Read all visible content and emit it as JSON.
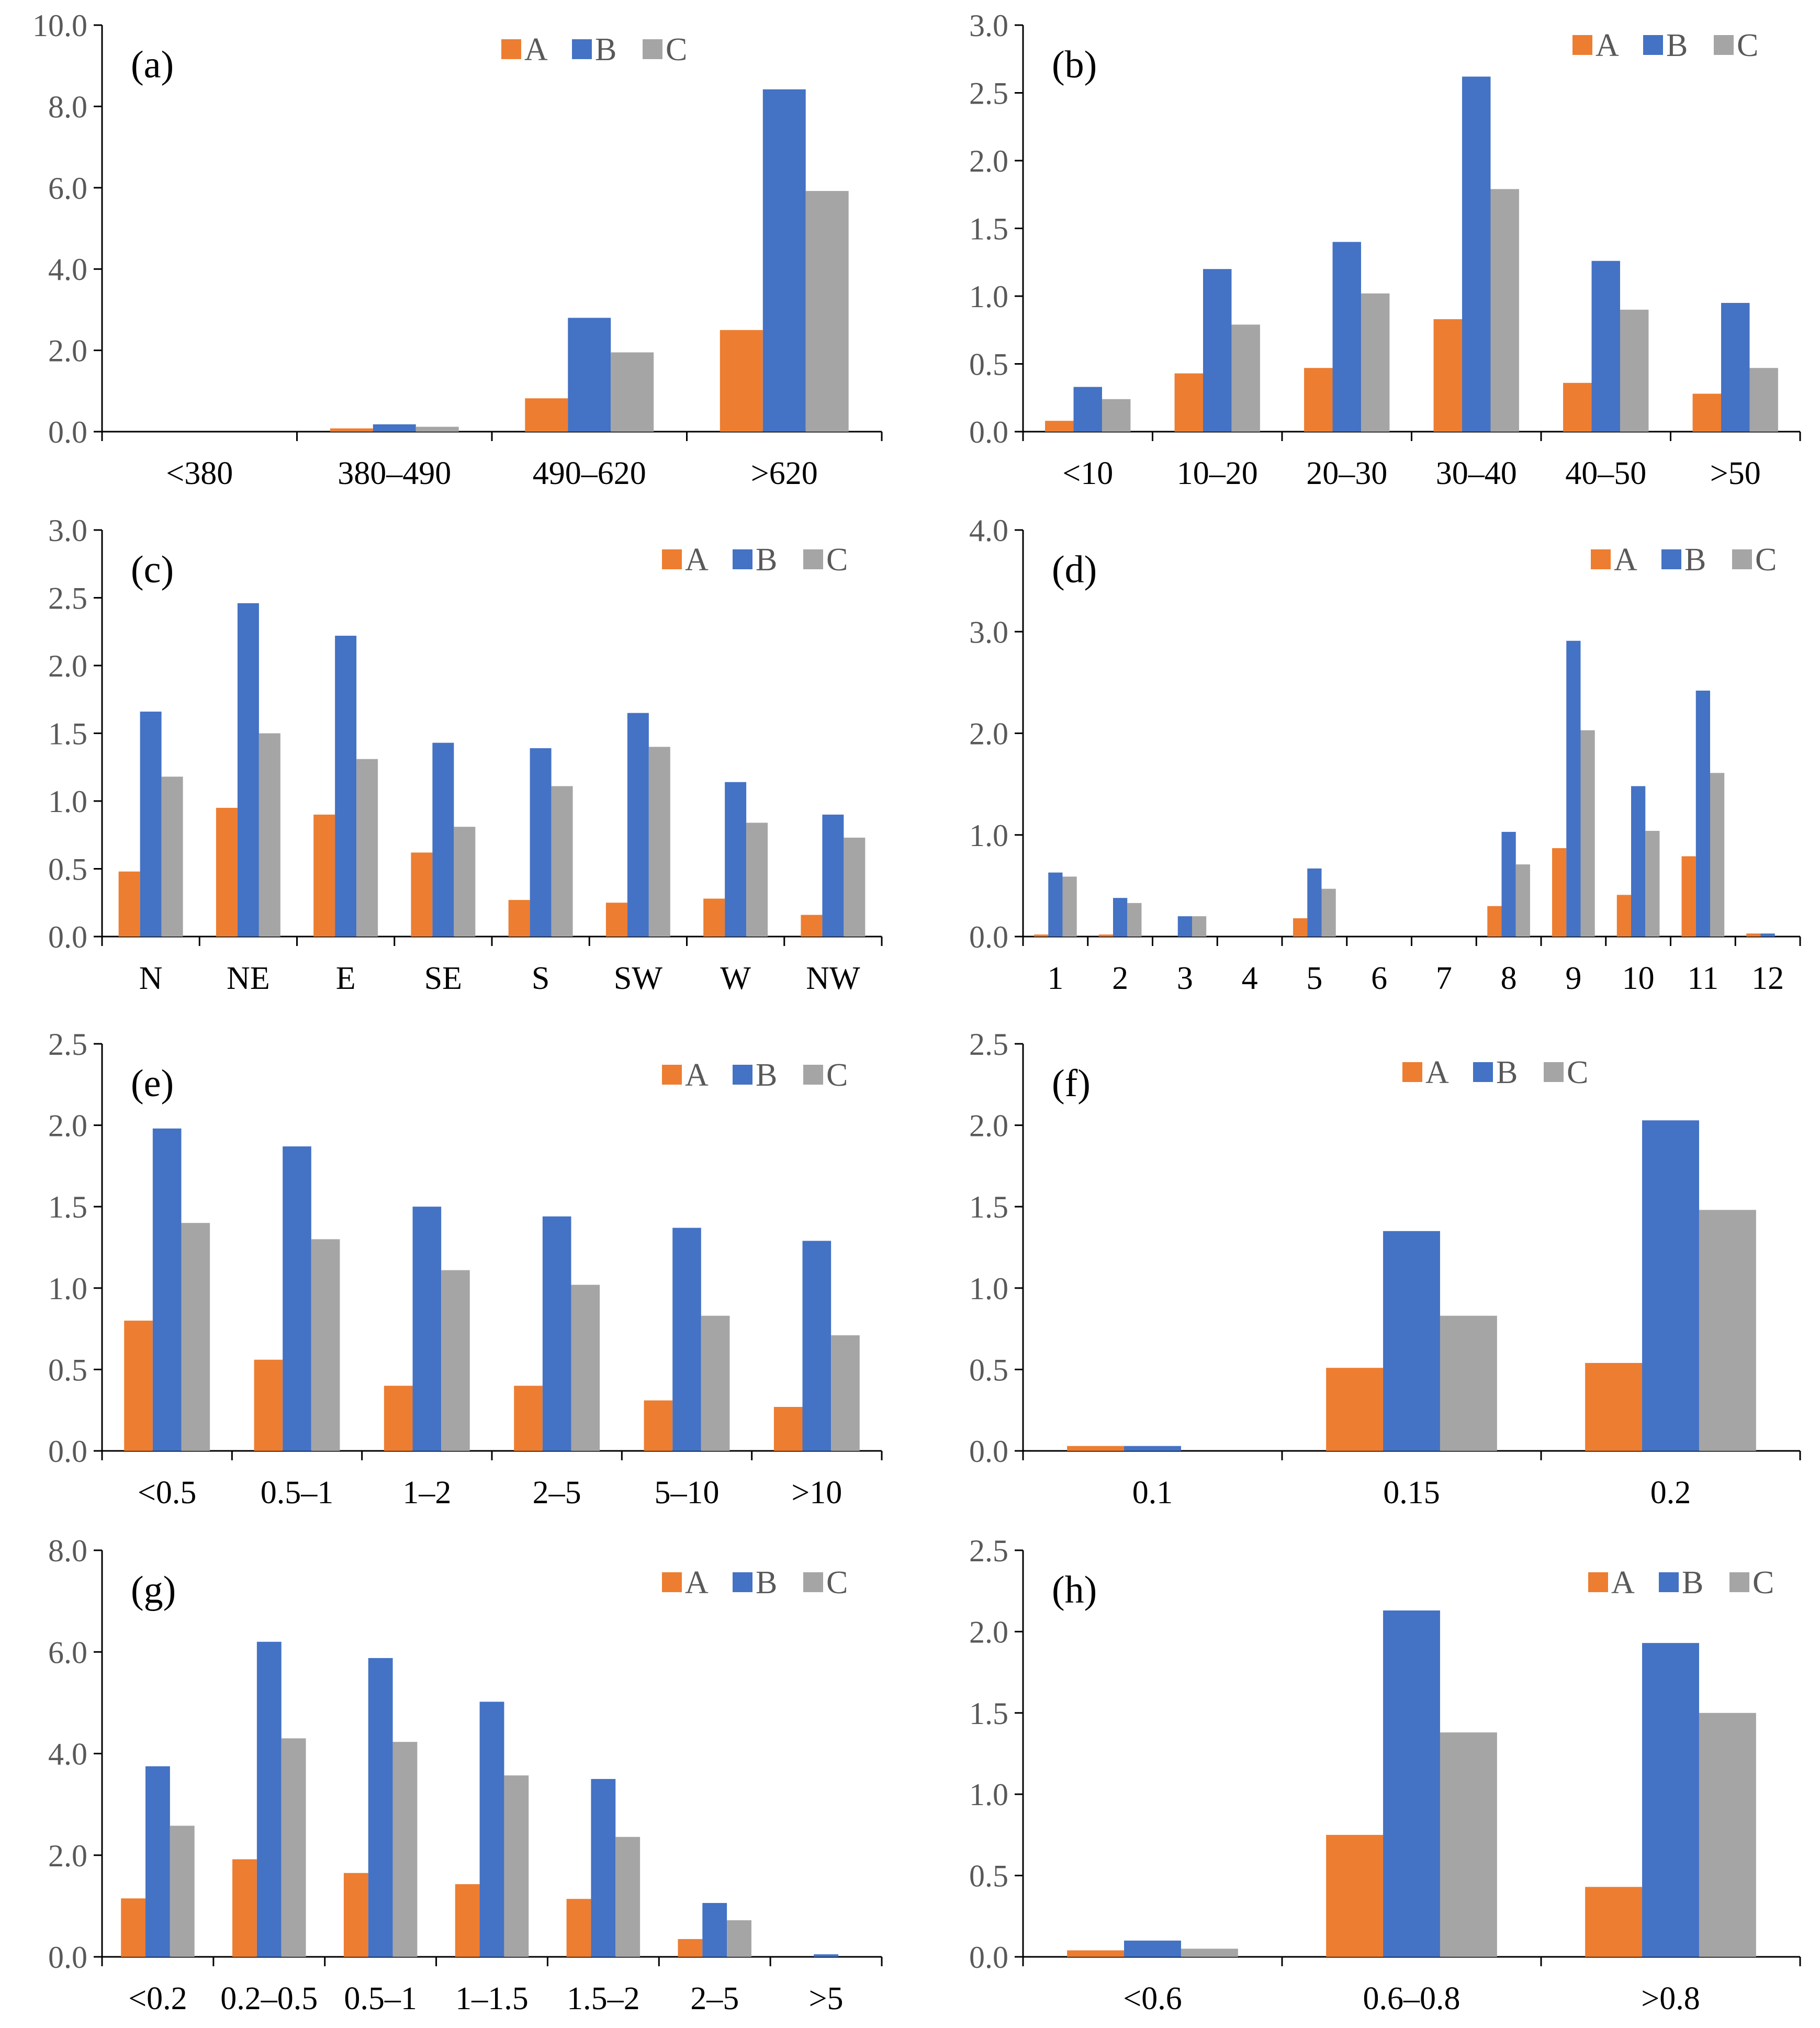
{
  "colors": {
    "A": "#ED7D31",
    "B": "#4472C4",
    "C": "#A5A5A5",
    "axis": "#000000"
  },
  "legend_labels": [
    "A",
    "B",
    "C"
  ],
  "chart_data": [
    {
      "type": "bar",
      "panel": "(a)",
      "ylim": [
        0,
        10
      ],
      "ystep": 2,
      "ydecimals": 1,
      "categories": [
        "<380",
        "380–490",
        "490–620",
        ">620"
      ],
      "series": [
        {
          "name": "A",
          "values": [
            0,
            0.08,
            0.82,
            2.5
          ]
        },
        {
          "name": "B",
          "values": [
            0,
            0.18,
            2.8,
            8.42
          ]
        },
        {
          "name": "C",
          "values": [
            0,
            0.12,
            1.95,
            5.92
          ]
        }
      ]
    },
    {
      "type": "bar",
      "panel": "(b)",
      "ylim": [
        0,
        3
      ],
      "ystep": 0.5,
      "ydecimals": 1,
      "categories": [
        "<10",
        "10–20",
        "20–30",
        "30–40",
        "40–50",
        ">50"
      ],
      "series": [
        {
          "name": "A",
          "values": [
            0.08,
            0.43,
            0.47,
            0.83,
            0.36,
            0.28
          ]
        },
        {
          "name": "B",
          "values": [
            0.33,
            1.2,
            1.4,
            2.62,
            1.26,
            0.95
          ]
        },
        {
          "name": "C",
          "values": [
            0.24,
            0.79,
            1.02,
            1.79,
            0.9,
            0.47
          ]
        }
      ]
    },
    {
      "type": "bar",
      "panel": "(c)",
      "ylim": [
        0,
        3
      ],
      "ystep": 0.5,
      "ydecimals": 1,
      "categories": [
        "N",
        "NE",
        "E",
        "SE",
        "S",
        "SW",
        "W",
        "NW"
      ],
      "series": [
        {
          "name": "A",
          "values": [
            0.48,
            0.95,
            0.9,
            0.62,
            0.27,
            0.25,
            0.28,
            0.16
          ]
        },
        {
          "name": "B",
          "values": [
            1.66,
            2.46,
            2.22,
            1.43,
            1.39,
            1.65,
            1.14,
            0.9
          ]
        },
        {
          "name": "C",
          "values": [
            1.18,
            1.5,
            1.31,
            0.81,
            1.11,
            1.4,
            0.84,
            0.73
          ]
        }
      ]
    },
    {
      "type": "bar",
      "panel": "(d)",
      "ylim": [
        0,
        4
      ],
      "ystep": 1,
      "ydecimals": 1,
      "categories": [
        "1",
        "2",
        "3",
        "4",
        "5",
        "6",
        "7",
        "8",
        "9",
        "10",
        "11",
        "12"
      ],
      "series": [
        {
          "name": "A",
          "values": [
            0.02,
            0.02,
            0,
            0,
            0.18,
            0,
            0,
            0.3,
            0.87,
            0.41,
            0.79,
            0.03
          ]
        },
        {
          "name": "B",
          "values": [
            0.63,
            0.38,
            0.2,
            0,
            0.67,
            0,
            0,
            1.03,
            2.91,
            1.48,
            2.42,
            0.03
          ]
        },
        {
          "name": "C",
          "values": [
            0.59,
            0.33,
            0.2,
            0,
            0.47,
            0,
            0,
            0.71,
            2.03,
            1.04,
            1.61,
            0
          ]
        }
      ]
    },
    {
      "type": "bar",
      "panel": "(e)",
      "ylim": [
        0,
        2.5
      ],
      "ystep": 0.5,
      "ydecimals": 1,
      "categories": [
        "<0.5",
        "0.5–1",
        "1–2",
        "2–5",
        "5–10",
        ">10"
      ],
      "series": [
        {
          "name": "A",
          "values": [
            0.8,
            0.56,
            0.4,
            0.4,
            0.31,
            0.27
          ]
        },
        {
          "name": "B",
          "values": [
            1.98,
            1.87,
            1.5,
            1.44,
            1.37,
            1.29
          ]
        },
        {
          "name": "C",
          "values": [
            1.4,
            1.3,
            1.11,
            1.02,
            0.83,
            0.71
          ]
        }
      ]
    },
    {
      "type": "bar",
      "panel": "(f)",
      "ylim": [
        0,
        2.5
      ],
      "ystep": 0.5,
      "ydecimals": 1,
      "categories": [
        "0.1",
        "0.15",
        "0.2"
      ],
      "series": [
        {
          "name": "A",
          "values": [
            0.03,
            0.51,
            0.54
          ]
        },
        {
          "name": "B",
          "values": [
            0.03,
            1.35,
            2.03
          ]
        },
        {
          "name": "C",
          "values": [
            0,
            0.83,
            1.48
          ]
        }
      ]
    },
    {
      "type": "bar",
      "panel": "(g)",
      "ylim": [
        0,
        8
      ],
      "ystep": 2,
      "ydecimals": 1,
      "categories": [
        "<0.2",
        "0.2–0.5",
        "0.5–1",
        "1–1.5",
        "1.5–2",
        "2–5",
        ">5"
      ],
      "series": [
        {
          "name": "A",
          "values": [
            1.15,
            1.92,
            1.65,
            1.43,
            1.14,
            0.35,
            0
          ]
        },
        {
          "name": "B",
          "values": [
            3.75,
            6.2,
            5.88,
            5.02,
            3.5,
            1.06,
            0.05
          ]
        },
        {
          "name": "C",
          "values": [
            2.58,
            4.3,
            4.23,
            3.57,
            2.36,
            0.72,
            0
          ]
        }
      ]
    },
    {
      "type": "bar",
      "panel": "(h)",
      "ylim": [
        0,
        2.5
      ],
      "ystep": 0.5,
      "ydecimals": 1,
      "categories": [
        "<0.6",
        "0.6–0.8",
        ">0.8"
      ],
      "series": [
        {
          "name": "A",
          "values": [
            0.04,
            0.75,
            0.43
          ]
        },
        {
          "name": "B",
          "values": [
            0.1,
            2.13,
            1.93
          ]
        },
        {
          "name": "C",
          "values": [
            0.05,
            1.38,
            1.5
          ]
        }
      ]
    }
  ]
}
